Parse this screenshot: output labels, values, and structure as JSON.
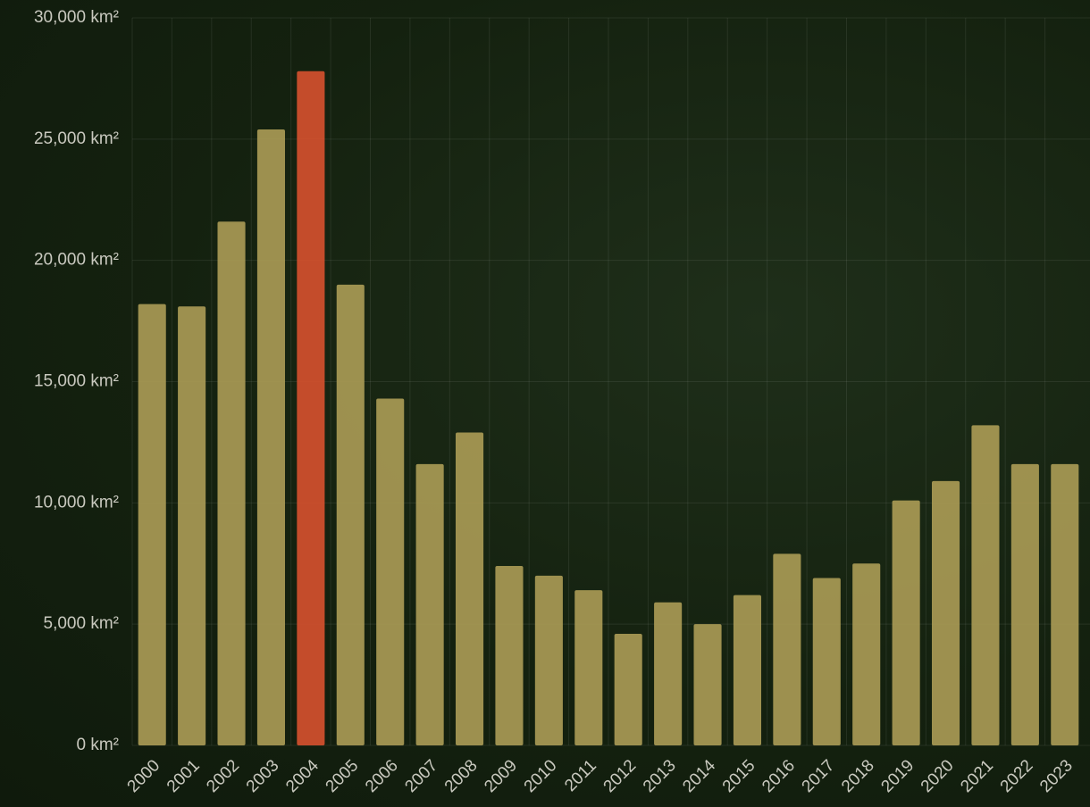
{
  "chart_data": {
    "type": "bar",
    "categories": [
      "2000",
      "2001",
      "2002",
      "2003",
      "2004",
      "2005",
      "2006",
      "2007",
      "2008",
      "2009",
      "2010",
      "2011",
      "2012",
      "2013",
      "2014",
      "2015",
      "2016",
      "2017",
      "2018",
      "2019",
      "2020",
      "2021",
      "2022",
      "2023"
    ],
    "values": [
      18200,
      18100,
      21600,
      25400,
      27800,
      19000,
      14300,
      11600,
      12900,
      7400,
      7000,
      6400,
      4600,
      5900,
      5000,
      6200,
      7900,
      6900,
      7500,
      10100,
      10900,
      13200,
      11600,
      11600
    ],
    "colors": [
      "#a99a55",
      "#a99a55",
      "#a99a55",
      "#a99a55",
      "#d4502e",
      "#a99a55",
      "#a99a55",
      "#a99a55",
      "#a99a55",
      "#a99a55",
      "#a99a55",
      "#a99a55",
      "#a99a55",
      "#a99a55",
      "#a99a55",
      "#a99a55",
      "#a99a55",
      "#a99a55",
      "#a99a55",
      "#a99a55",
      "#a99a55",
      "#a99a55",
      "#a99a55",
      "#a99a55"
    ],
    "ylim": [
      0,
      30000
    ],
    "yticks": [
      {
        "value": 0,
        "label": "0 km²"
      },
      {
        "value": 5000,
        "label": "5,000 km²"
      },
      {
        "value": 10000,
        "label": "10,000 km²"
      },
      {
        "value": 15000,
        "label": "15,000 km²"
      },
      {
        "value": 20000,
        "label": "20,000 km²"
      },
      {
        "value": 25000,
        "label": "25,000 km²"
      },
      {
        "value": 30000,
        "label": "30,000 km²"
      }
    ],
    "grid": true
  }
}
